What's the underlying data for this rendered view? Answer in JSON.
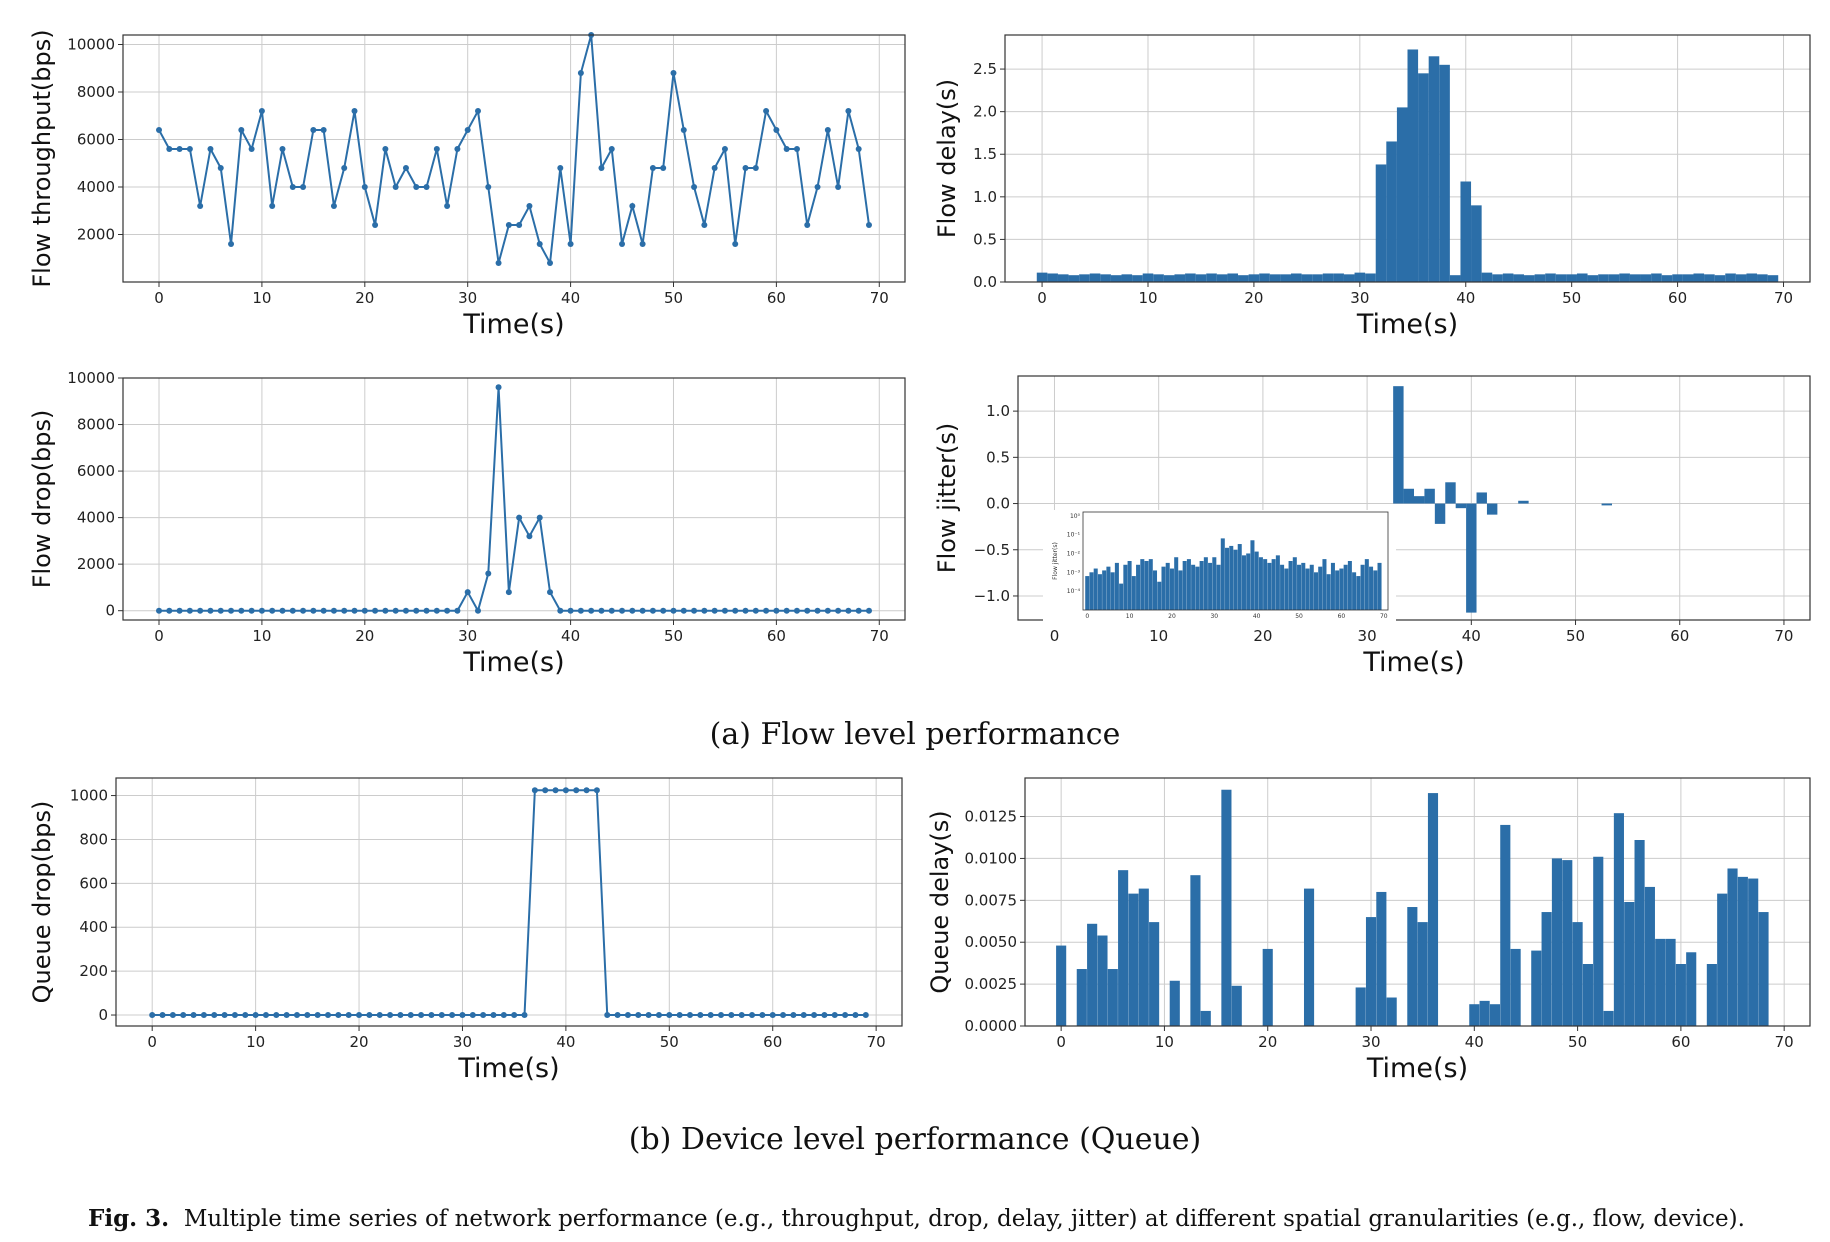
{
  "subcaption_a": "(a) Flow level performance",
  "subcaption_b": "(b) Device level performance (Queue)",
  "caption": {
    "label": "Fig. 3.",
    "text": "Multiple time series of network performance (e.g., throughput, drop, delay, jitter) at different spatial granularities (e.g., flow, device)."
  },
  "colors": {
    "series": "#2b6ea8",
    "grid": "#cccccc",
    "axis": "#333333"
  },
  "chart_data": [
    {
      "id": "flow-throughput",
      "type": "line",
      "xlabel": "Time(s)",
      "ylabel": "Flow throughput(bps)",
      "xlim": [
        -3.5,
        72.5
      ],
      "ylim": [
        0,
        10400
      ],
      "xticks": [
        0,
        10,
        20,
        30,
        40,
        50,
        60,
        70
      ],
      "yticks": [
        2000,
        4000,
        6000,
        8000,
        10000
      ],
      "x": [
        0,
        1,
        2,
        3,
        4,
        5,
        6,
        7,
        8,
        9,
        10,
        11,
        12,
        13,
        14,
        15,
        16,
        17,
        18,
        19,
        20,
        21,
        22,
        23,
        24,
        25,
        26,
        27,
        28,
        29,
        30,
        31,
        32,
        33,
        34,
        35,
        36,
        37,
        38,
        39,
        40,
        41,
        42,
        43,
        44,
        45,
        46,
        47,
        48,
        49,
        50,
        51,
        52,
        53,
        54,
        55,
        56,
        57,
        58,
        59,
        60,
        61,
        62,
        63,
        64,
        65,
        66,
        67,
        68,
        69
      ],
      "values": [
        6400,
        5600,
        5600,
        5600,
        3200,
        5600,
        4800,
        1600,
        6400,
        5600,
        7200,
        3200,
        5600,
        4000,
        4000,
        6400,
        6400,
        3200,
        4800,
        7200,
        4000,
        2400,
        5600,
        4000,
        4800,
        4000,
        4000,
        5600,
        3200,
        5600,
        6400,
        7200,
        4000,
        800,
        2400,
        2400,
        3200,
        1600,
        800,
        4800,
        1600,
        8800,
        10400,
        4800,
        5600,
        1600,
        3200,
        1600,
        4800,
        4800,
        8800,
        6400,
        4000,
        2400,
        4800,
        5600,
        1600,
        4800,
        4800,
        7200,
        6400,
        5600,
        5600,
        2400,
        4000,
        6400,
        4000,
        7200,
        5600,
        2400
      ]
    },
    {
      "id": "flow-delay",
      "type": "bar",
      "xlabel": "Time(s)",
      "ylabel": "Flow delay(s)",
      "xlim": [
        -3.5,
        72.5
      ],
      "ylim": [
        0,
        2.9
      ],
      "xticks": [
        0,
        10,
        20,
        30,
        40,
        50,
        60,
        70
      ],
      "yticks": [
        0.0,
        0.5,
        1.0,
        1.5,
        2.0,
        2.5
      ],
      "yticklabels": [
        "0.0",
        "0.5",
        "1.0",
        "1.5",
        "2.0",
        "2.5"
      ],
      "x": [
        0,
        1,
        2,
        3,
        4,
        5,
        6,
        7,
        8,
        9,
        10,
        11,
        12,
        13,
        14,
        15,
        16,
        17,
        18,
        19,
        20,
        21,
        22,
        23,
        24,
        25,
        26,
        27,
        28,
        29,
        30,
        31,
        32,
        33,
        34,
        35,
        36,
        37,
        38,
        39,
        40,
        41,
        42,
        43,
        44,
        45,
        46,
        47,
        48,
        49,
        50,
        51,
        52,
        53,
        54,
        55,
        56,
        57,
        58,
        59,
        60,
        61,
        62,
        63,
        64,
        65,
        66,
        67,
        68,
        69
      ],
      "values": [
        0.11,
        0.1,
        0.09,
        0.08,
        0.09,
        0.1,
        0.09,
        0.08,
        0.09,
        0.08,
        0.1,
        0.09,
        0.08,
        0.09,
        0.1,
        0.09,
        0.1,
        0.09,
        0.1,
        0.08,
        0.09,
        0.1,
        0.09,
        0.09,
        0.1,
        0.09,
        0.09,
        0.1,
        0.1,
        0.09,
        0.11,
        0.1,
        1.38,
        1.65,
        2.05,
        2.73,
        2.45,
        2.65,
        2.55,
        0.08,
        1.18,
        0.9,
        0.11,
        0.09,
        0.1,
        0.09,
        0.08,
        0.09,
        0.1,
        0.09,
        0.09,
        0.1,
        0.08,
        0.09,
        0.09,
        0.1,
        0.09,
        0.09,
        0.1,
        0.08,
        0.09,
        0.09,
        0.1,
        0.09,
        0.08,
        0.1,
        0.09,
        0.1,
        0.09,
        0.08
      ]
    },
    {
      "id": "flow-drop",
      "type": "line",
      "xlabel": "Time(s)",
      "ylabel": "Flow drop(bps)",
      "xlim": [
        -3.5,
        72.5
      ],
      "ylim": [
        -400,
        10000
      ],
      "xticks": [
        0,
        10,
        20,
        30,
        40,
        50,
        60,
        70
      ],
      "yticks": [
        0,
        2000,
        4000,
        6000,
        8000,
        10000
      ],
      "x": [
        0,
        1,
        2,
        3,
        4,
        5,
        6,
        7,
        8,
        9,
        10,
        11,
        12,
        13,
        14,
        15,
        16,
        17,
        18,
        19,
        20,
        21,
        22,
        23,
        24,
        25,
        26,
        27,
        28,
        29,
        30,
        31,
        32,
        33,
        34,
        35,
        36,
        37,
        38,
        39,
        40,
        41,
        42,
        43,
        44,
        45,
        46,
        47,
        48,
        49,
        50,
        51,
        52,
        53,
        54,
        55,
        56,
        57,
        58,
        59,
        60,
        61,
        62,
        63,
        64,
        65,
        66,
        67,
        68,
        69
      ],
      "values": [
        0,
        0,
        0,
        0,
        0,
        0,
        0,
        0,
        0,
        0,
        0,
        0,
        0,
        0,
        0,
        0,
        0,
        0,
        0,
        0,
        0,
        0,
        0,
        0,
        0,
        0,
        0,
        0,
        0,
        0,
        800,
        0,
        1600,
        9600,
        800,
        4000,
        3200,
        4000,
        800,
        0,
        0,
        0,
        0,
        0,
        0,
        0,
        0,
        0,
        0,
        0,
        0,
        0,
        0,
        0,
        0,
        0,
        0,
        0,
        0,
        0,
        0,
        0,
        0,
        0,
        0,
        0,
        0,
        0,
        0,
        0
      ]
    },
    {
      "id": "flow-jitter",
      "type": "bar",
      "xlabel": "Time(s)",
      "ylabel": "Flow jitter(s)",
      "xlim": [
        -3.5,
        72.5
      ],
      "ylim": [
        -1.26,
        1.38
      ],
      "xticks": [
        0,
        10,
        20,
        30,
        40,
        50,
        60,
        70
      ],
      "yticks": [
        -1.0,
        -0.5,
        0.0,
        0.5,
        1.0
      ],
      "yticklabels": [
        "−1.0",
        "−0.5",
        "0.0",
        "0.5",
        "1.0"
      ],
      "x": [
        33,
        34,
        35,
        36,
        37,
        38,
        39,
        40,
        41,
        42,
        45,
        53
      ],
      "values": [
        1.27,
        0.16,
        0.08,
        0.16,
        -0.22,
        0.23,
        -0.05,
        -1.18,
        0.12,
        -0.12,
        0.03,
        -0.02
      ],
      "inset": {
        "type": "bar",
        "yscale": "log",
        "ylabel": "Flow jitter(s)",
        "xticks": [
          0,
          10,
          20,
          30,
          40,
          50,
          60,
          70
        ],
        "yticklabels": [
          "10⁰",
          "10⁻¹",
          "10⁻²",
          "10⁻³",
          "10⁻⁴"
        ],
        "ylim_log": [
          -5,
          0.2
        ],
        "values_log10": [
          -3.2,
          -3.0,
          -2.8,
          -3.1,
          -2.9,
          -2.7,
          -3.0,
          -2.5,
          -3.6,
          -2.6,
          -2.4,
          -3.2,
          -2.6,
          -2.3,
          -2.4,
          -2.3,
          -2.9,
          -3.5,
          -2.7,
          -2.5,
          -2.8,
          -2.2,
          -2.9,
          -2.4,
          -2.3,
          -2.6,
          -2.7,
          -2.4,
          -2.2,
          -2.5,
          -2.2,
          -2.6,
          -1.2,
          -1.7,
          -1.6,
          -1.8,
          -1.5,
          -2.1,
          -2.0,
          -1.3,
          -1.9,
          -2.2,
          -2.3,
          -2.5,
          -2.3,
          -2.1,
          -2.6,
          -2.8,
          -2.4,
          -2.2,
          -2.6,
          -2.5,
          -2.8,
          -2.6,
          -3.0,
          -2.7,
          -2.3,
          -3.1,
          -2.5,
          -2.9,
          -2.8,
          -2.6,
          -2.4,
          -3.0,
          -3.2,
          -2.6,
          -2.3,
          -2.7,
          -2.9,
          -2.5
        ]
      }
    },
    {
      "id": "queue-drop",
      "type": "line",
      "xlabel": "Time(s)",
      "ylabel": "Queue drop(bps)",
      "xlim": [
        -3.5,
        72.5
      ],
      "ylim": [
        -50,
        1080
      ],
      "xticks": [
        0,
        10,
        20,
        30,
        40,
        50,
        60,
        70
      ],
      "yticks": [
        0,
        200,
        400,
        600,
        800,
        1000
      ],
      "x": [
        0,
        1,
        2,
        3,
        4,
        5,
        6,
        7,
        8,
        9,
        10,
        11,
        12,
        13,
        14,
        15,
        16,
        17,
        18,
        19,
        20,
        21,
        22,
        23,
        24,
        25,
        26,
        27,
        28,
        29,
        30,
        31,
        32,
        33,
        34,
        35,
        36,
        37,
        38,
        39,
        40,
        41,
        42,
        43,
        44,
        45,
        46,
        47,
        48,
        49,
        50,
        51,
        52,
        53,
        54,
        55,
        56,
        57,
        58,
        59,
        60,
        61,
        62,
        63,
        64,
        65,
        66,
        67,
        68,
        69
      ],
      "values": [
        0,
        0,
        0,
        0,
        0,
        0,
        0,
        0,
        0,
        0,
        0,
        0,
        0,
        0,
        0,
        0,
        0,
        0,
        0,
        0,
        0,
        0,
        0,
        0,
        0,
        0,
        0,
        0,
        0,
        0,
        0,
        0,
        0,
        0,
        0,
        0,
        0,
        1024,
        1024,
        1024,
        1024,
        1024,
        1024,
        1024,
        0,
        0,
        0,
        0,
        0,
        0,
        0,
        0,
        0,
        0,
        0,
        0,
        0,
        0,
        0,
        0,
        0,
        0,
        0,
        0,
        0,
        0,
        0,
        0,
        0,
        0
      ]
    },
    {
      "id": "queue-delay",
      "type": "bar",
      "xlabel": "Time(s)",
      "ylabel": "Queue delay(s)",
      "xlim": [
        -3.5,
        72.5
      ],
      "ylim": [
        0,
        0.0148
      ],
      "xticks": [
        0,
        10,
        20,
        30,
        40,
        50,
        60,
        70
      ],
      "yticks": [
        0.0,
        0.0025,
        0.005,
        0.0075,
        0.01,
        0.0125
      ],
      "yticklabels": [
        "0.0000",
        "0.0025",
        "0.0050",
        "0.0075",
        "0.0100",
        "0.0125"
      ],
      "x": [
        0,
        1,
        2,
        3,
        4,
        5,
        6,
        7,
        8,
        9,
        10,
        11,
        12,
        13,
        14,
        15,
        16,
        17,
        18,
        19,
        20,
        21,
        22,
        23,
        24,
        25,
        26,
        27,
        28,
        29,
        30,
        31,
        32,
        33,
        34,
        35,
        36,
        37,
        38,
        39,
        40,
        41,
        42,
        43,
        44,
        45,
        46,
        47,
        48,
        49,
        50,
        51,
        52,
        53,
        54,
        55,
        56,
        57,
        58,
        59,
        60,
        61,
        62,
        63,
        64,
        65,
        66,
        67,
        68,
        69
      ],
      "values": [
        0.0048,
        0,
        0.0034,
        0.0061,
        0.0054,
        0.0034,
        0.0093,
        0.0079,
        0.0082,
        0.0062,
        0,
        0.0027,
        0,
        0.009,
        0.0009,
        0,
        0.0141,
        0.0024,
        0,
        0,
        0.0046,
        0,
        0,
        0,
        0.0082,
        0,
        0,
        0,
        0,
        0.0023,
        0.0065,
        0.008,
        0.0017,
        0,
        0.0071,
        0.0062,
        0.0139,
        0,
        0,
        0,
        0.0013,
        0.0015,
        0.0013,
        0.012,
        0.0046,
        0,
        0.0045,
        0.0068,
        0.01,
        0.0099,
        0.0062,
        0.0037,
        0.0101,
        0.0009,
        0.0127,
        0.0074,
        0.0111,
        0.0083,
        0.0052,
        0.0052,
        0.0037,
        0.0044,
        0,
        0.0037,
        0.0079,
        0.0094,
        0.0089,
        0.0088,
        0.0068,
        0
      ]
    }
  ]
}
